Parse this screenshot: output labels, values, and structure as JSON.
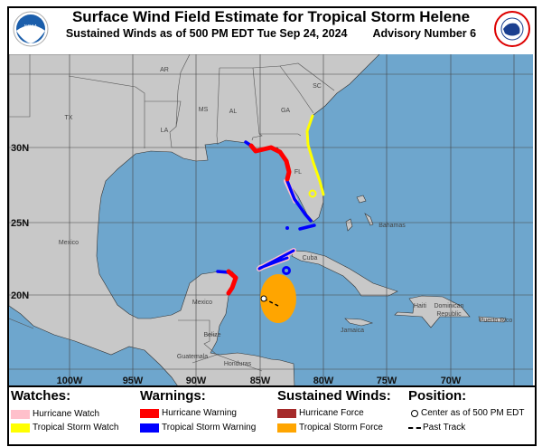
{
  "header": {
    "title": "Surface Wind Field Estimate for Tropical Storm Helene",
    "subtitle_left": "Sustained Winds as of 500 PM EDT Tue Sep 24, 2024",
    "subtitle_right": "Advisory Number 6",
    "left_logo": "NOAA",
    "right_logo": "NATIONAL WEATHER SERVICE"
  },
  "map": {
    "lat_labels": [
      "30N",
      "25N",
      "20N"
    ],
    "lon_labels": [
      "100W",
      "95W",
      "90W",
      "85W",
      "80W",
      "75W",
      "70W"
    ],
    "place_labels": {
      "tx": "TX",
      "la": "LA",
      "ms": "MS",
      "al": "AL",
      "ga": "GA",
      "sc": "SC",
      "ar": "AR",
      "fl": "FL",
      "mexico1": "Mexico",
      "mexico2": "Mexico",
      "belize": "Belize",
      "guatemala": "Guatemala",
      "honduras": "Honduras",
      "cuba": "Cuba",
      "jamaica": "Jamaica",
      "haiti": "Haiti",
      "dominican1": "Dominican",
      "dominican2": "Republic",
      "puertorico": "Puerto Rico",
      "bahamas": "Bahamas"
    },
    "colors": {
      "ocean": "#6ea6cd",
      "land": "#c8c8c8",
      "hurricane_watch": "#ffc0cb",
      "ts_watch": "#ffff00",
      "hurricane_warning": "#ff0000",
      "ts_warning": "#0000ff",
      "hurricane_force": "#a52a2a",
      "ts_force": "#ffa500"
    }
  },
  "legend": {
    "watches": {
      "heading": "Watches:",
      "items": [
        "Hurricane Watch",
        "Tropical Storm Watch"
      ]
    },
    "warnings": {
      "heading": "Warnings:",
      "items": [
        "Hurricane Warning",
        "Tropical Storm Warning"
      ]
    },
    "winds": {
      "heading": "Sustained Winds:",
      "items": [
        "Hurricane Force",
        "Tropical Storm Force"
      ]
    },
    "position": {
      "heading": "Position:",
      "items": [
        "Center as of 500 PM EDT",
        "Past Track"
      ]
    }
  }
}
